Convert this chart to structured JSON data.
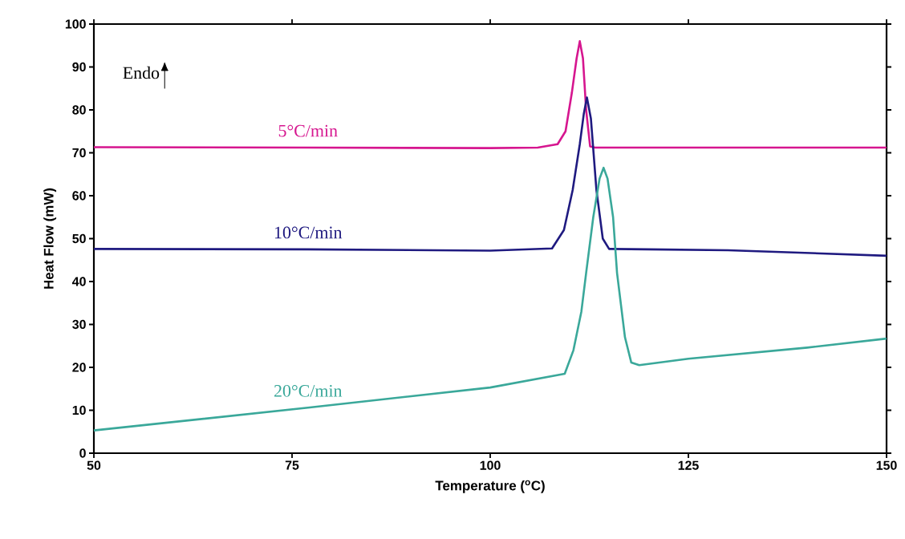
{
  "chart_data": {
    "type": "line",
    "xlabel": "Temperature ($^{o}$C)",
    "ylabel": "Heat Flow (mW)",
    "xlim": [
      50,
      150
    ],
    "xticks": [
      50,
      75,
      100,
      125,
      150
    ],
    "ylim": [
      0,
      100
    ],
    "yticks": [
      0,
      10,
      20,
      30,
      40,
      50,
      60,
      70,
      80,
      90,
      100
    ],
    "grid": false,
    "legend": false,
    "marker": "none",
    "line_style": "solid",
    "annotations": [
      "Endo"
    ],
    "series": [
      {
        "name": "5°C/min",
        "color": "#d6168f",
        "x": [
          50,
          77,
          100,
          106,
          108.5,
          109.5,
          110.3,
          110.9,
          111.3,
          111.7,
          112.1,
          112.6,
          113.2,
          120,
          150
        ],
        "values": [
          71.3,
          71.2,
          71.1,
          71.2,
          72,
          75,
          84,
          92,
          96,
          92,
          80,
          71.5,
          71.2,
          71.2,
          71.2
        ]
      },
      {
        "name": "10°C/min",
        "color": "#1f1a80",
        "x": [
          50,
          77,
          100,
          107.8,
          109.3,
          110.4,
          111.3,
          111.8,
          112.2,
          112.7,
          113.4,
          114.2,
          115,
          120,
          130,
          150
        ],
        "values": [
          47.6,
          47.5,
          47.2,
          47.7,
          52,
          61.3,
          72,
          79,
          82.9,
          78,
          61.3,
          50,
          47.6,
          47.5,
          47.3,
          46
        ]
      },
      {
        "name": "20°C/min",
        "color": "#3aa89a",
        "x": [
          50,
          77,
          100,
          109.4,
          110.5,
          111.5,
          112.1,
          113,
          113.8,
          114.3,
          114.8,
          115.5,
          116,
          117,
          117.8,
          118.8,
          125,
          140,
          150
        ],
        "values": [
          5.3,
          10.6,
          15.3,
          18.5,
          24,
          33,
          42,
          55,
          64,
          66.5,
          64,
          55,
          42,
          27,
          21.1,
          20.5,
          22,
          24.6,
          26.7
        ]
      }
    ]
  }
}
